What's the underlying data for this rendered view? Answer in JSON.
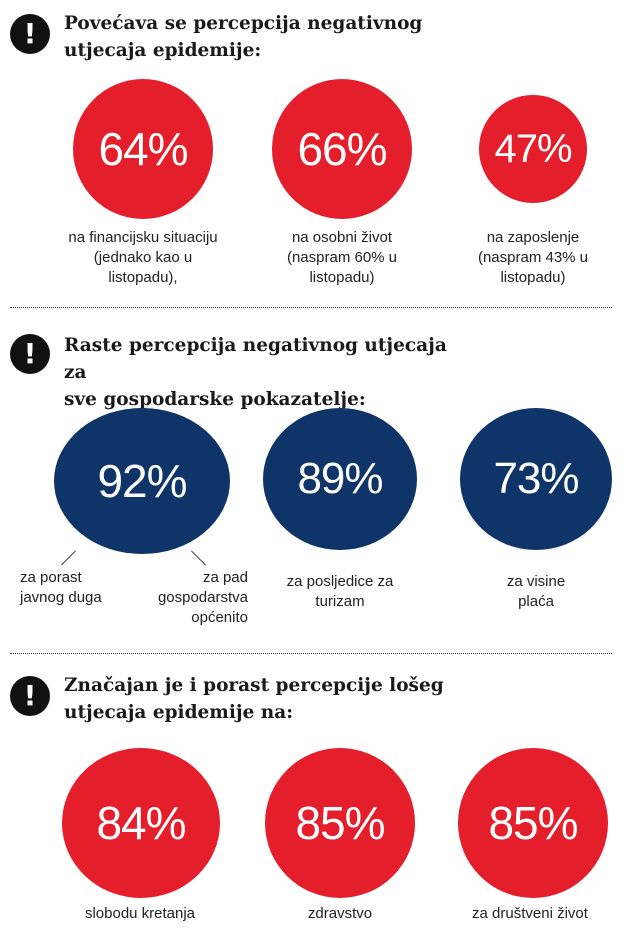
{
  "icon": {
    "glyph": "!",
    "name": "exclamation-icon"
  },
  "colors": {
    "red": "#e41e2b",
    "navy": "#0e3468"
  },
  "sections": [
    {
      "heading": "Povećava se percepcija negativnog\nutjecaja epidemije:",
      "stats": [
        {
          "value": "64%",
          "caption": "na financijsku situaciju\n(jednako kao u\nlistopadu),"
        },
        {
          "value": "66%",
          "caption": "na osobni život\n(naspram 60% u\nlistopadu)"
        },
        {
          "value": "47%",
          "caption": "na zaposlenje\n(naspram 43% u\nlistopadu)"
        }
      ]
    },
    {
      "heading": "Raste percepcija negativnog utjecaja za\nsve gospodarske pokazatelje:",
      "stats": [
        {
          "value": "92%",
          "caption_left": "za porast\njavnog duga",
          "caption_right": "za pad\ngospodarstva\nopćenito"
        },
        {
          "value": "89%",
          "caption": "za posljedice za\nturizam"
        },
        {
          "value": "73%",
          "caption": "za visine\nplaća"
        }
      ]
    },
    {
      "heading": "Značajan je i porast percepcije lošeg\nutjecaja epidemije na:",
      "stats": [
        {
          "value": "84%",
          "caption": "slobodu kretanja"
        },
        {
          "value": "85%",
          "caption": "zdravstvo"
        },
        {
          "value": "85%",
          "caption": "za društveni život"
        }
      ]
    }
  ]
}
